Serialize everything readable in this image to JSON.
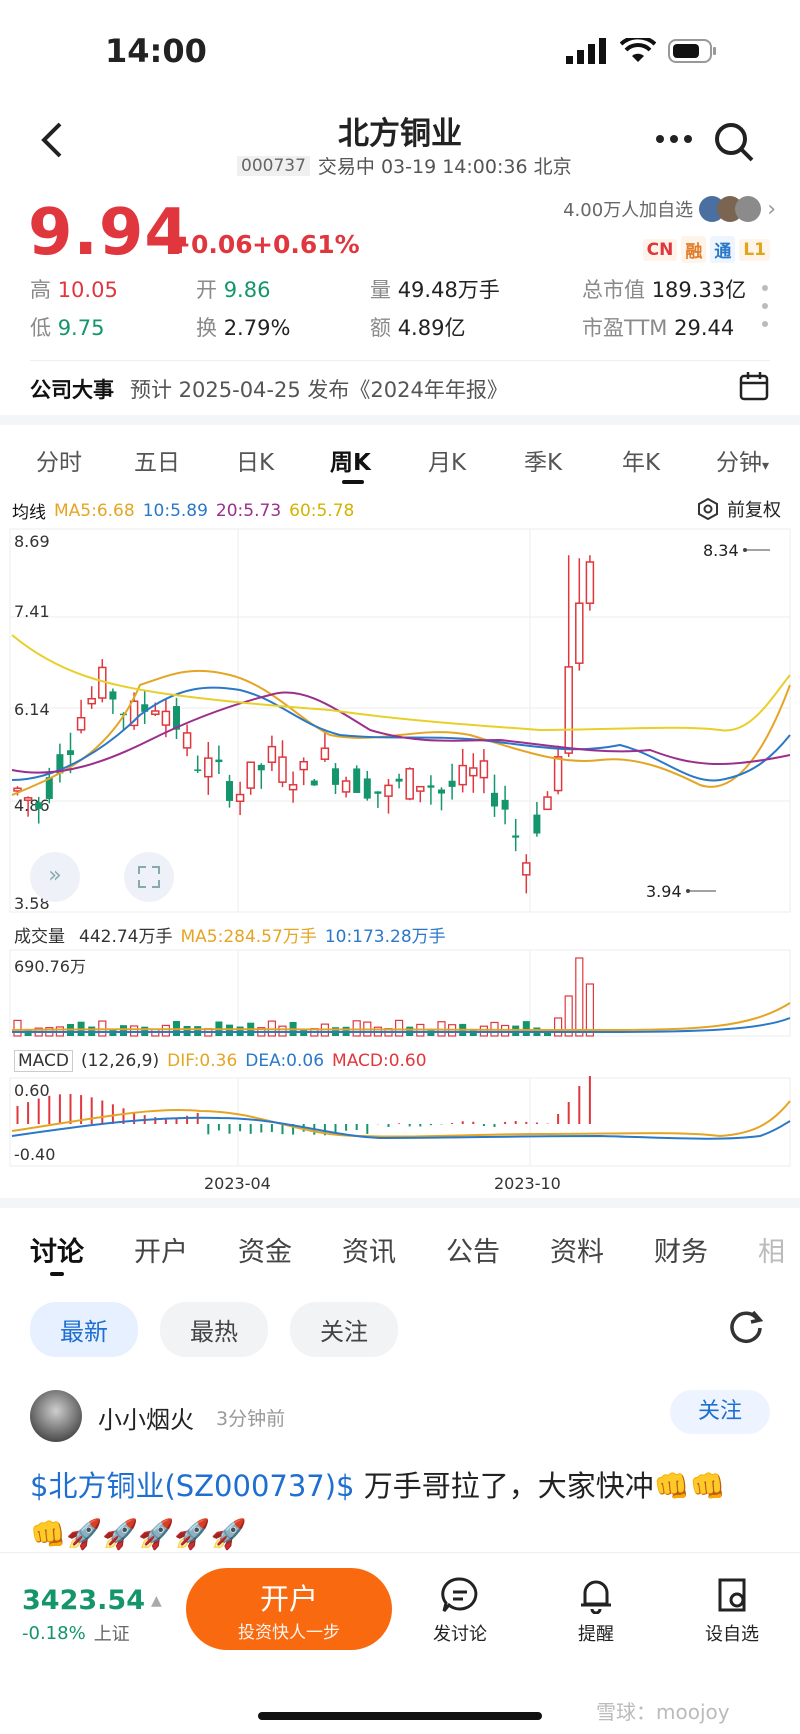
{
  "status_bar": {
    "time": "14:00"
  },
  "header": {
    "title": "北方铜业",
    "code": "000737",
    "status": "交易中 03-19 14:00:36 北京"
  },
  "quote": {
    "price": "9.94",
    "change": "+0.06",
    "change_pct": "+0.61%",
    "followers": "4.00万人加自选",
    "badges": [
      "CN",
      "融",
      "通",
      "L1"
    ],
    "stats": [
      {
        "label": "高",
        "value": "10.05",
        "tone": "red"
      },
      {
        "label": "开",
        "value": "9.86",
        "tone": "green"
      },
      {
        "label": "量",
        "value": "49.48万手",
        "tone": "plain"
      },
      {
        "label": "总市值",
        "value": "189.33亿",
        "tone": "plain"
      },
      {
        "label": "低",
        "value": "9.75",
        "tone": "green"
      },
      {
        "label": "换",
        "value": "2.79%",
        "tone": "plain"
      },
      {
        "label": "额",
        "value": "4.89亿",
        "tone": "plain"
      },
      {
        "label": "市盈TTM",
        "value": "29.44",
        "tone": "plain"
      }
    ]
  },
  "event": {
    "label": "公司大事",
    "text": "预计 2025-04-25 发布《2024年年报》"
  },
  "chart_tabs": [
    "分时",
    "五日",
    "日K",
    "周K",
    "月K",
    "季K",
    "年K",
    "分钟"
  ],
  "chart_tabs_active": 3,
  "ma_bar": {
    "label": "均线",
    "ma5": "MA5:6.68",
    "ma10": "10:5.89",
    "ma20": "20:5.73",
    "ma60": "60:5.78",
    "adjust": "前复权"
  },
  "volume_bar": {
    "label": "成交量",
    "value": "442.74万手",
    "ma5": "MA5:284.57万手",
    "ma10": "10:173.28万手"
  },
  "macd_bar": {
    "label": "MACD",
    "params": "(12,26,9)",
    "dif": "DIF:0.36",
    "dea": "DEA:0.06",
    "macd": "MACD:0.60"
  },
  "colors": {
    "up": "#e0373e",
    "down": "#14956b",
    "ma5": "#e5a524",
    "ma10": "#2a78c8",
    "ma20": "#9b2f8c",
    "ma60": "#e8cf2a"
  },
  "chart_data": {
    "type": "candlestick",
    "price_axis": {
      "ticks": [
        "8.69",
        "7.41",
        "6.14",
        "4.86",
        "3.58"
      ],
      "ylim": [
        3.58,
        8.69
      ]
    },
    "volume_axis": {
      "ticks": [
        "690.76万"
      ]
    },
    "macd_axis": {
      "ticks": [
        "0.60",
        "-0.40"
      ]
    },
    "x_ticks": [
      "2023-04",
      "2023-10"
    ],
    "annotations": {
      "high": "8.34",
      "low": "3.94"
    },
    "last_candles": [
      {
        "o": 5.2,
        "c": 5.65,
        "h": 5.8,
        "l": 5.15
      },
      {
        "o": 5.7,
        "c": 6.85,
        "h": 8.34,
        "l": 5.65
      },
      {
        "o": 6.9,
        "c": 7.7,
        "h": 8.3,
        "l": 6.8
      },
      {
        "o": 7.7,
        "c": 8.25,
        "h": 8.34,
        "l": 7.6
      }
    ]
  },
  "discussion_tabs": [
    "讨论",
    "开户",
    "资金",
    "资讯",
    "公告",
    "资料",
    "财务",
    "相"
  ],
  "filters": [
    "最新",
    "最热",
    "关注"
  ],
  "post": {
    "user": "小小烟火",
    "time": "3分钟前",
    "follow": "关注",
    "stock_link": "$北方铜业(SZ000737)$",
    "text": " 万手哥拉了，大家快冲",
    "emojis_row1": "👊👊",
    "emojis_row2": "👊🚀🚀🚀🚀🚀"
  },
  "bottom_bar": {
    "index_value": "3423.54",
    "index_change": "-0.18%",
    "index_name": "上证",
    "open_account": "开户",
    "open_account_sub": "投资快人一步",
    "actions": [
      "发讨论",
      "提醒",
      "设自选"
    ]
  },
  "watermark": "雪球：moojoy"
}
